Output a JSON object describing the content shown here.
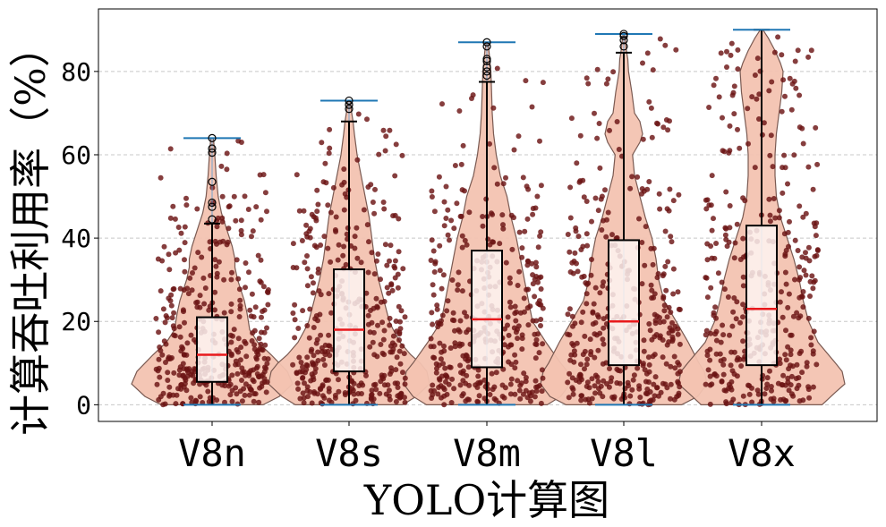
{
  "chart_data": {
    "type": "violin",
    "xlabel": "YOLO计算图",
    "ylabel": "计算吞吐利用率（%）",
    "categories": [
      "V8n",
      "V8s",
      "V8m",
      "V8l",
      "V8x"
    ],
    "ylim": [
      -4,
      95
    ],
    "yticks": [
      0,
      20,
      40,
      60,
      80
    ],
    "grid": "horizontal dashed",
    "colors": {
      "violin_fill": "#f3c3b1",
      "violin_edge": "#7a5a52",
      "points": "#6b1414",
      "median": "#e8191c",
      "mean": "#5f9fd5",
      "whisker_cap": "#1f77b4",
      "box_fill": "#fdf3f1"
    },
    "boxes": [
      {
        "category": "V8n",
        "min": 0,
        "q1": 5.5,
        "median": 12,
        "q3": 21,
        "whisker_high": 43.5,
        "max": 64,
        "outliers": [
          44.5,
          47.5,
          48.5,
          53.5,
          60.5,
          61.5,
          64
        ]
      },
      {
        "category": "V8s",
        "min": 0,
        "q1": 8,
        "median": 18,
        "q3": 32.5,
        "whisker_high": 68,
        "max": 73,
        "outliers": [
          71,
          72,
          73
        ]
      },
      {
        "category": "V8m",
        "min": 0,
        "q1": 9,
        "median": 20.5,
        "q3": 37,
        "whisker_high": 77.5,
        "max": 87,
        "outliers": [
          79,
          80,
          81,
          82.5,
          83,
          86,
          87
        ]
      },
      {
        "category": "V8l",
        "min": 0,
        "q1": 9.5,
        "median": 20,
        "q3": 39.5,
        "whisker_high": 84.5,
        "max": 89,
        "outliers": [
          86,
          87.5,
          88.5,
          89
        ]
      },
      {
        "category": "V8x",
        "min": 0,
        "q1": 9.5,
        "median": 23,
        "q3": 43,
        "whisker_high": 90,
        "max": 90,
        "outliers": []
      }
    ],
    "violin_profiles": [
      {
        "category": "V8n",
        "y": [
          0,
          2,
          5,
          8,
          10,
          12,
          15,
          18,
          20,
          22,
          25,
          28,
          30,
          33,
          35,
          38,
          40,
          43,
          46,
          50,
          55,
          60,
          64
        ],
        "half_width": [
          0.38,
          0.5,
          0.6,
          0.56,
          0.5,
          0.44,
          0.34,
          0.28,
          0.27,
          0.26,
          0.24,
          0.21,
          0.19,
          0.17,
          0.17,
          0.15,
          0.13,
          0.1,
          0.07,
          0.045,
          0.03,
          0.02,
          0.01
        ]
      },
      {
        "category": "V8s",
        "y": [
          0,
          2,
          5,
          8,
          10,
          12,
          15,
          18,
          20,
          25,
          30,
          35,
          40,
          45,
          50,
          55,
          60,
          65,
          68,
          70,
          73
        ],
        "half_width": [
          0.4,
          0.5,
          0.6,
          0.58,
          0.53,
          0.46,
          0.38,
          0.33,
          0.3,
          0.26,
          0.22,
          0.19,
          0.17,
          0.15,
          0.12,
          0.09,
          0.06,
          0.04,
          0.03,
          0.02,
          0.01
        ]
      },
      {
        "category": "V8m",
        "y": [
          0,
          2,
          5,
          8,
          10,
          15,
          20,
          25,
          30,
          35,
          40,
          45,
          50,
          55,
          60,
          65,
          70,
          75,
          80,
          85,
          87
        ],
        "half_width": [
          0.45,
          0.55,
          0.62,
          0.6,
          0.55,
          0.44,
          0.34,
          0.31,
          0.28,
          0.25,
          0.22,
          0.18,
          0.15,
          0.1,
          0.07,
          0.05,
          0.04,
          0.035,
          0.03,
          0.015,
          0.005
        ]
      },
      {
        "category": "V8l",
        "y": [
          0,
          2,
          5,
          8,
          10,
          15,
          20,
          25,
          30,
          35,
          40,
          45,
          50,
          55,
          60,
          63,
          65,
          68,
          70,
          75,
          78,
          80,
          83,
          85,
          88,
          89
        ],
        "half_width": [
          0.43,
          0.55,
          0.62,
          0.6,
          0.56,
          0.48,
          0.39,
          0.3,
          0.26,
          0.24,
          0.21,
          0.16,
          0.12,
          0.08,
          0.065,
          0.12,
          0.14,
          0.12,
          0.08,
          0.06,
          0.045,
          0.035,
          0.03,
          0.02,
          0.01,
          0.005
        ]
      },
      {
        "category": "V8x",
        "y": [
          0,
          3,
          5,
          8,
          10,
          15,
          20,
          25,
          30,
          35,
          40,
          45,
          50,
          55,
          60,
          65,
          70,
          75,
          80,
          82,
          85,
          88,
          90
        ],
        "half_width": [
          0.45,
          0.55,
          0.62,
          0.6,
          0.55,
          0.42,
          0.35,
          0.31,
          0.28,
          0.24,
          0.19,
          0.14,
          0.11,
          0.1,
          0.1,
          0.11,
          0.13,
          0.15,
          0.16,
          0.14,
          0.1,
          0.05,
          0.01
        ]
      }
    ]
  }
}
